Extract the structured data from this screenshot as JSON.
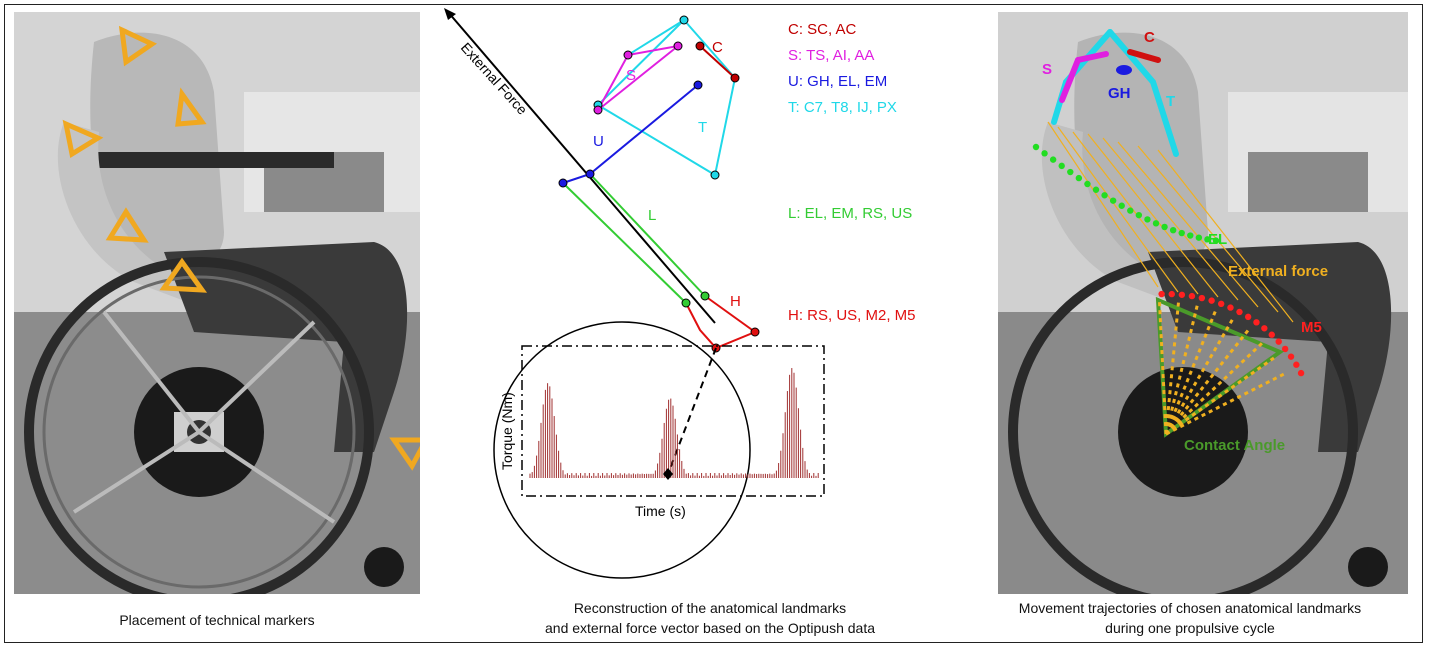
{
  "captions": {
    "left": "Placement of technical markers",
    "center_line1": "Reconstruction of the anatomical landmarks",
    "center_line2": "and external force vector based on the Optipush data",
    "right_line1": "Movement trajectories of chosen anatomical landmarks",
    "right_line2": "during one propulsive cycle"
  },
  "center": {
    "external_force_label": "External Force",
    "segments": {
      "S": "S",
      "C": "C",
      "U": "U",
      "T": "T",
      "L": "L",
      "H": "H"
    },
    "legend": {
      "c": "C: SC, AC",
      "s": "S: TS, AI, AA",
      "u": "U: GH, EL, EM",
      "t": "T: C7, T8, IJ, PX",
      "l": "L: EL, EM, RS, US",
      "h": "H: RS, US, M2, M5"
    },
    "torque_axis_label": "Torque (Nm)",
    "time_axis_label": "Time (s)",
    "colors": {
      "C": "#c00000",
      "S": "#e020e0",
      "U": "#1a1ae0",
      "T": "#20d8e8",
      "L": "#33cc33",
      "H": "#e01010",
      "torque": "#a03030"
    }
  },
  "right": {
    "labels": {
      "s": "S",
      "c": "C",
      "gh": "GH",
      "t": "T",
      "el": "EL",
      "external_force": "External force",
      "m5": "M5",
      "contact_angle": "Contact Angle"
    },
    "colors": {
      "S": "#e020e0",
      "C": "#d01010",
      "GH": "#1a1ae0",
      "T": "#20d8e8",
      "EL": "#22dd22",
      "force": "#f0b020",
      "M5": "#ff2020",
      "contact": "#4a9a2a"
    }
  },
  "left": {
    "marker_color": "#f0a820"
  }
}
